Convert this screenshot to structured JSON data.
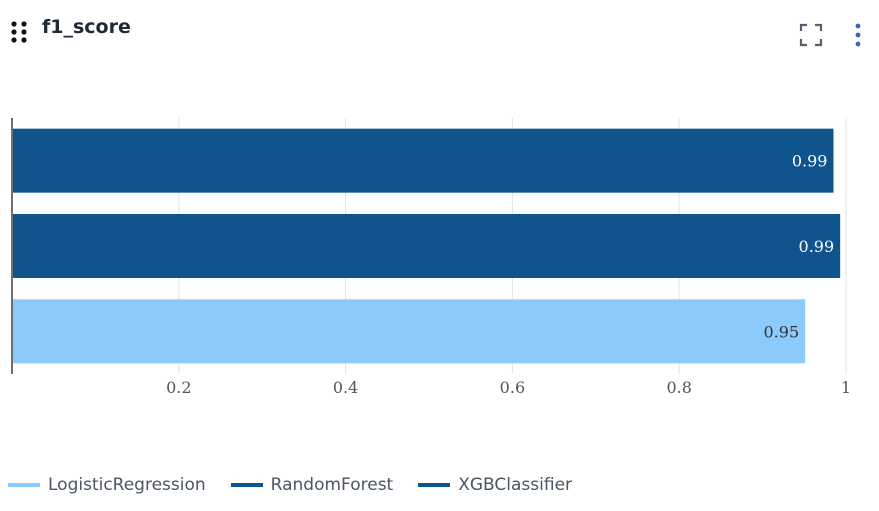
{
  "card": {
    "title": "f1_score",
    "drag_icon": "drag-dots-icon",
    "expand_icon": "fullscreen-icon",
    "menu_icon": "more-vertical-icon"
  },
  "chart_data": {
    "type": "bar",
    "orientation": "horizontal",
    "title": "f1_score",
    "xlabel": "",
    "ylabel": "",
    "xlim": [
      0,
      1
    ],
    "xticks": [
      0.2,
      0.4,
      0.6,
      0.8,
      1
    ],
    "xtick_labels": [
      "0.2",
      "0.4",
      "0.6",
      "0.8",
      "1"
    ],
    "grid": true,
    "legend_position": "bottom-left",
    "series": [
      {
        "name": "XGBClassifier",
        "value": 0.985,
        "label": "0.99",
        "color": "#0f548c"
      },
      {
        "name": "RandomForest",
        "value": 0.993,
        "label": "0.99",
        "color": "#0f548c"
      },
      {
        "name": "LogisticRegression",
        "value": 0.951,
        "label": "0.95",
        "color": "#8bcafb"
      }
    ]
  },
  "legend": [
    {
      "name": "LogisticRegression",
      "color": "#8bcafb"
    },
    {
      "name": "RandomForest",
      "color": "#0f548c"
    },
    {
      "name": "XGBClassifier",
      "color": "#0f548c"
    }
  ]
}
